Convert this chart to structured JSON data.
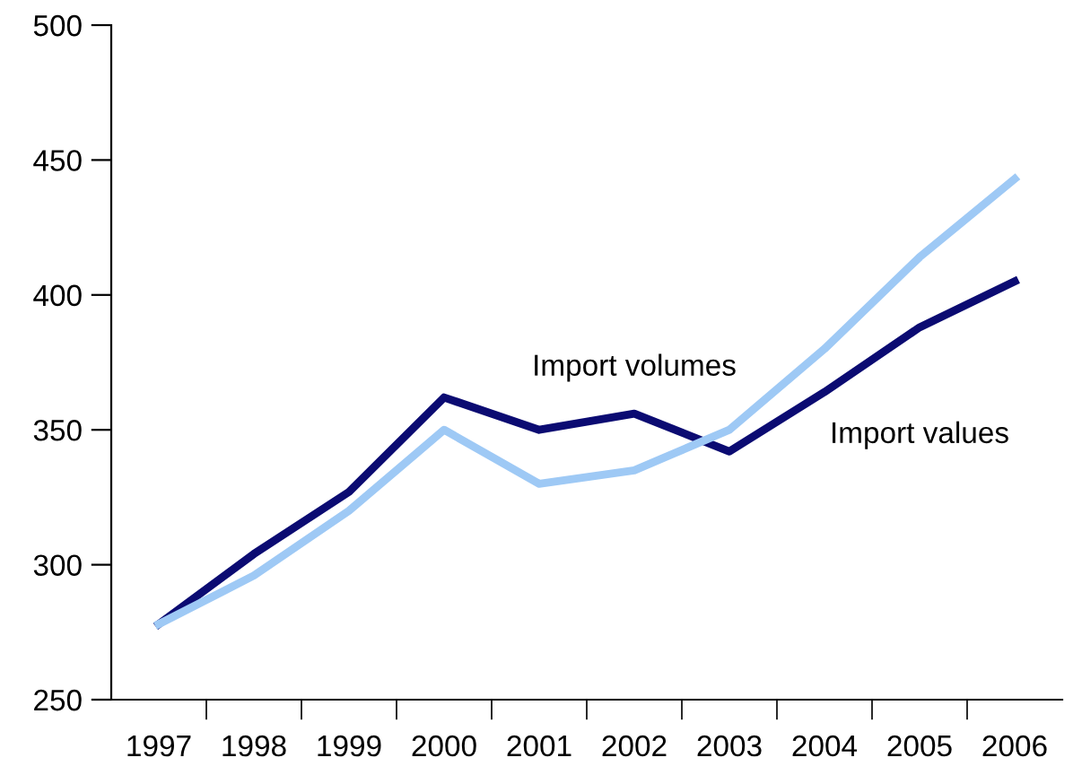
{
  "chart_data": {
    "type": "line",
    "categories": [
      "1997",
      "1998",
      "1999",
      "2000",
      "2001",
      "2002",
      "2003",
      "2004",
      "2005",
      "2006"
    ],
    "series": [
      {
        "name": "Import values",
        "color": "#0b0b72",
        "values": [
          278,
          304,
          327,
          362,
          350,
          356,
          342,
          364,
          388,
          405
        ]
      },
      {
        "name": "Import volumes",
        "color": "#9ec9f5",
        "values": [
          278,
          296,
          320,
          350,
          330,
          335,
          350,
          380,
          414,
          443
        ]
      }
    ],
    "ylim": [
      250,
      500
    ],
    "yticks": [
      250,
      300,
      350,
      400,
      450,
      500
    ],
    "grid": false,
    "legend": false,
    "marker": "none",
    "line_style": "solid"
  }
}
